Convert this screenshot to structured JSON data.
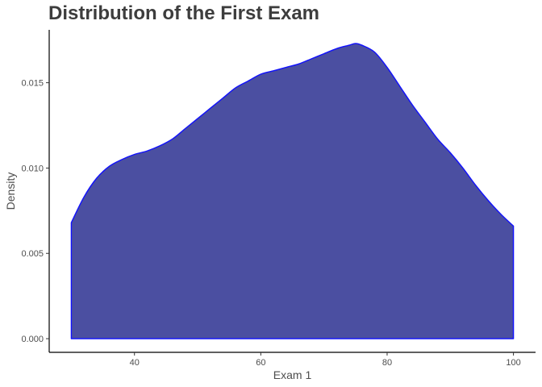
{
  "chart_data": {
    "type": "area",
    "title": "Distribution of the First Exam",
    "xlabel": "Exam 1",
    "ylabel": "Density",
    "xlim": [
      26.5,
      103.5
    ],
    "ylim": [
      -0.0008,
      0.0181
    ],
    "x_ticks": [
      40,
      60,
      80,
      100
    ],
    "x_tick_labels": [
      "40",
      "60",
      "80",
      "100"
    ],
    "y_ticks": [
      0.0,
      0.005,
      0.01,
      0.015
    ],
    "y_tick_labels": [
      "0.000",
      "0.005",
      "0.010",
      "0.015"
    ],
    "grid": false,
    "legend": "none",
    "series": [
      {
        "fill_color": "#4b4fa1",
        "line_color": "#1010ff",
        "x": [
          30,
          32,
          34,
          36,
          38,
          40,
          42,
          44,
          46,
          48,
          50,
          52,
          54,
          56,
          58,
          60,
          62,
          64,
          66,
          68,
          70,
          72,
          74,
          75,
          76,
          78,
          80,
          82,
          84,
          86,
          88,
          90,
          92,
          94,
          96,
          98,
          100
        ],
        "y": [
          0.0068,
          0.0083,
          0.0094,
          0.0101,
          0.0105,
          0.0108,
          0.011,
          0.0113,
          0.0117,
          0.0123,
          0.0129,
          0.0135,
          0.0141,
          0.0147,
          0.0151,
          0.0155,
          0.0157,
          0.0159,
          0.0161,
          0.0164,
          0.0167,
          0.017,
          0.0172,
          0.0173,
          0.0172,
          0.0168,
          0.0159,
          0.0148,
          0.0137,
          0.0127,
          0.0117,
          0.0109,
          0.01,
          0.009,
          0.0081,
          0.0073,
          0.0066
        ]
      }
    ]
  }
}
